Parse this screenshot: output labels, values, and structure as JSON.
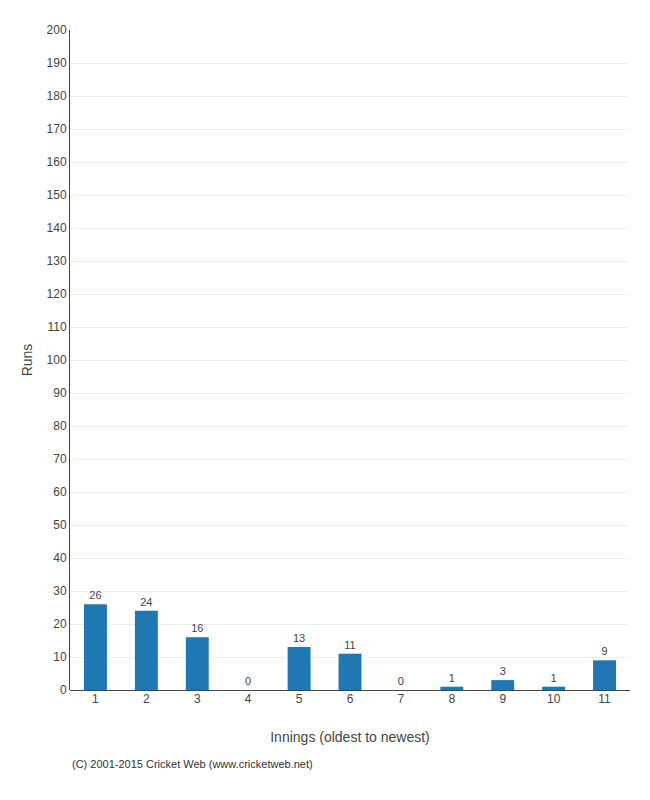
{
  "chart_data": {
    "type": "bar",
    "categories": [
      "1",
      "2",
      "3",
      "4",
      "5",
      "6",
      "7",
      "8",
      "9",
      "10",
      "11"
    ],
    "values": [
      26,
      24,
      16,
      0,
      13,
      11,
      0,
      1,
      3,
      1,
      9
    ],
    "xlabel": "Innings (oldest to newest)",
    "ylabel": "Runs",
    "ylim": [
      0,
      200
    ],
    "yticks": [
      0,
      10,
      20,
      30,
      40,
      50,
      60,
      70,
      80,
      90,
      100,
      110,
      120,
      130,
      140,
      150,
      160,
      170,
      180,
      190,
      200
    ],
    "grid": true,
    "data_labels": true,
    "annotations": [
      "(C) 2001-2015 Cricket Web (www.cricketweb.net)"
    ]
  }
}
